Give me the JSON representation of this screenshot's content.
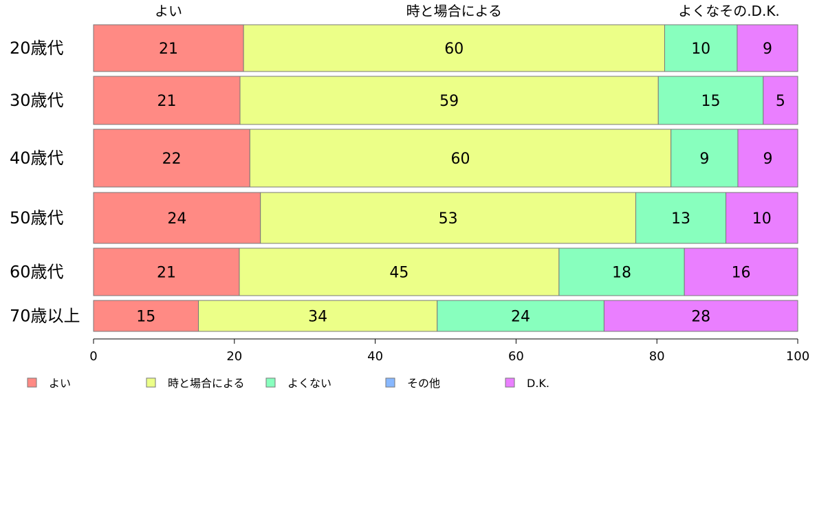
{
  "chart_data": {
    "type": "bar",
    "orientation": "horizontal",
    "stacked": true,
    "categories": [
      "20歳代",
      "30歳代",
      "40歳代",
      "50歳代",
      "60歳代",
      "70歳以上"
    ],
    "series": [
      {
        "name": "よい",
        "color": "#ff8a84",
        "values": [
          21.3,
          20.8,
          22.2,
          23.7,
          20.7,
          14.9
        ],
        "labels": [
          "21",
          "21",
          "22",
          "24",
          "21",
          "15"
        ]
      },
      {
        "name": "時と場合による",
        "color": "#ecff88",
        "values": [
          59.8,
          59.4,
          59.8,
          53.3,
          45.4,
          33.9
        ],
        "labels": [
          "60",
          "59",
          "60",
          "53",
          "45",
          "34"
        ]
      },
      {
        "name": "よくない",
        "color": "#88ffbe",
        "values": [
          10.3,
          14.9,
          9.5,
          12.8,
          17.8,
          23.7
        ],
        "labels": [
          "10",
          "15",
          "9",
          "13",
          "18",
          "24"
        ]
      },
      {
        "name": "その他",
        "color": "#88b8ff",
        "values": [
          0,
          0,
          0,
          0,
          0,
          0
        ],
        "labels": [
          "",
          "",
          "",
          "",
          "",
          ""
        ]
      },
      {
        "name": "D.K.",
        "color": "#ea7fff",
        "values": [
          8.6,
          4.9,
          8.5,
          10.2,
          16.1,
          27.5
        ],
        "labels": [
          "9",
          "5",
          "9",
          "10",
          "16",
          "28"
        ]
      }
    ],
    "top_labels": [
      "よい",
      "時と場合による",
      "よくなその.D.K."
    ],
    "xlim": [
      0,
      100
    ],
    "xticks": [
      "0",
      "20",
      "40",
      "60",
      "80",
      "100"
    ],
    "legend": [
      "よい",
      "時と場合による",
      "よくない",
      "その他",
      "D.K."
    ],
    "legend_position": "bottom"
  }
}
